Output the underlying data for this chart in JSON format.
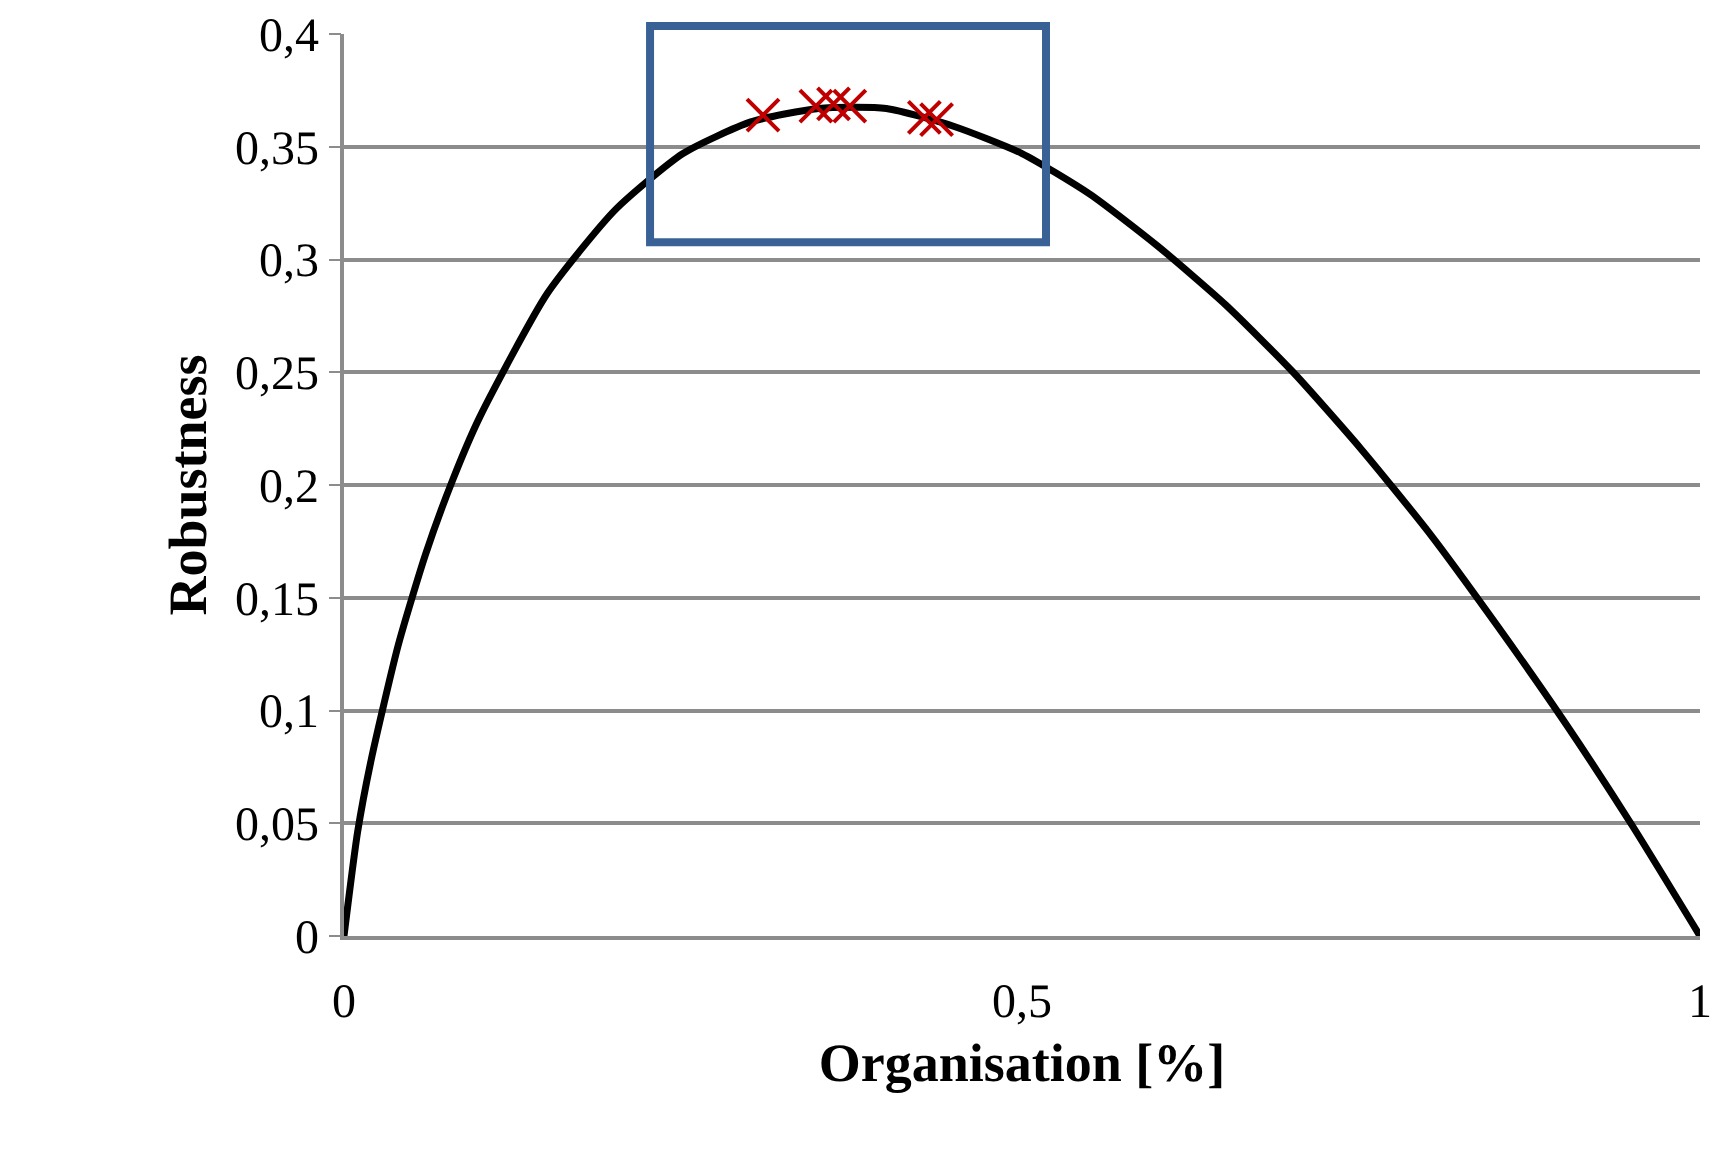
{
  "chart_data": {
    "type": "line",
    "xlabel": "Organisation [%]",
    "ylabel": "Robustness",
    "xlim": [
      0,
      1
    ],
    "xticks": [
      {
        "value": 0,
        "label": "0"
      },
      {
        "value": 0.5,
        "label": "0,5"
      },
      {
        "value": 1,
        "label": "1"
      }
    ],
    "ylim": [
      0,
      0.4
    ],
    "yticks": [
      {
        "value": 0,
        "label": "0"
      },
      {
        "value": 0.05,
        "label": "0,05"
      },
      {
        "value": 0.1,
        "label": "0,1"
      },
      {
        "value": 0.15,
        "label": "0,15"
      },
      {
        "value": 0.2,
        "label": "0,2"
      },
      {
        "value": 0.25,
        "label": "0,25"
      },
      {
        "value": 0.3,
        "label": "0,3"
      },
      {
        "value": 0.35,
        "label": "0,35"
      },
      {
        "value": 0.4,
        "label": "0,4"
      }
    ],
    "grid": "y",
    "legend": false,
    "series": [
      {
        "color": "#000000",
        "marker": "none",
        "line_style": "solid",
        "x": [
          0,
          0.01,
          0.02,
          0.04,
          0.06,
          0.08,
          0.1,
          0.15,
          0.2,
          0.25,
          0.3,
          0.35,
          0.4,
          0.45,
          0.5,
          0.55,
          0.6,
          0.65,
          0.7,
          0.75,
          0.8,
          0.85,
          0.9,
          0.95,
          1
        ],
        "values": [
          0,
          0.046,
          0.078,
          0.129,
          0.169,
          0.202,
          0.23,
          0.285,
          0.322,
          0.347,
          0.361,
          0.367,
          0.367,
          0.359,
          0.347,
          0.329,
          0.306,
          0.28,
          0.25,
          0.216,
          0.179,
          0.138,
          0.095,
          0.049,
          0
        ]
      },
      {
        "type": "scatter",
        "color": "#c00000",
        "marker": "cross",
        "x": [
          0.309,
          0.348,
          0.361,
          0.373,
          0.428,
          0.437
        ],
        "values": [
          0.364,
          0.368,
          0.369,
          0.368,
          0.363,
          0.362
        ]
      }
    ]
  }
}
